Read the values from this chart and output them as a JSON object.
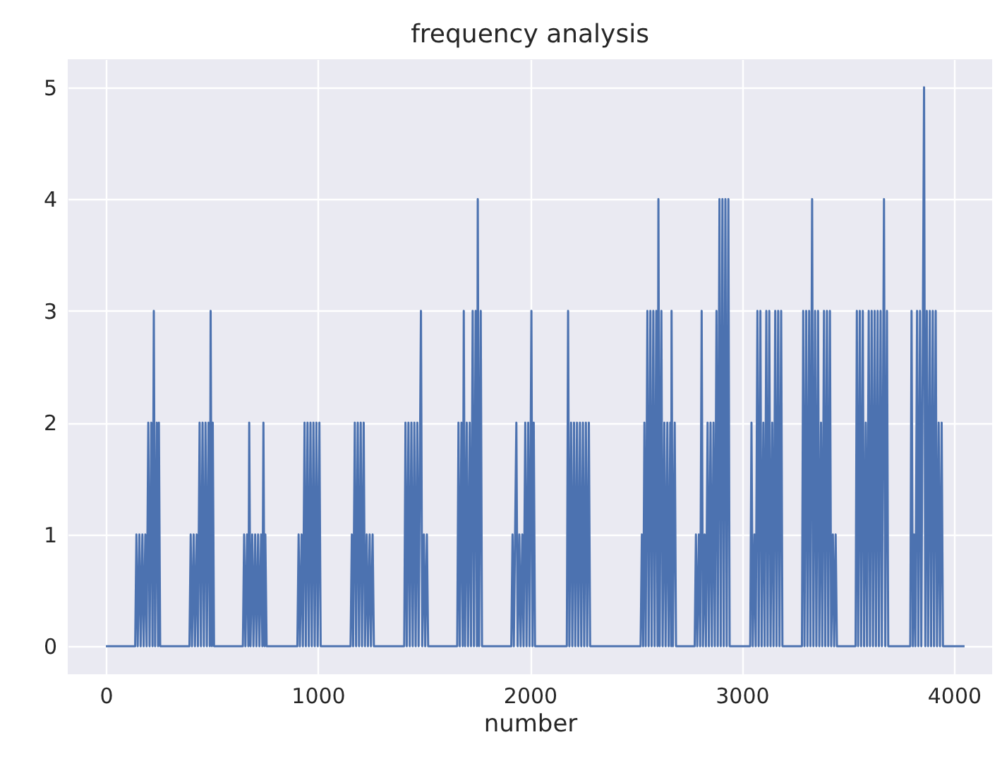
{
  "chart_data": {
    "type": "line",
    "title": "frequency analysis",
    "xlabel": "number",
    "x": [
      0,
      138,
      144,
      150,
      158,
      164,
      172,
      178,
      186,
      192,
      200,
      206,
      214,
      220,
      226,
      232,
      240,
      246,
      250,
      256,
      394,
      400,
      406,
      414,
      420,
      428,
      434,
      442,
      448,
      456,
      462,
      470,
      476,
      484,
      490,
      494,
      500,
      504,
      510,
      646,
      652,
      658,
      666,
      672,
      676,
      682,
      690,
      696,
      704,
      710,
      718,
      724,
      732,
      738,
      743,
      748,
      752,
      758,
      903,
      909,
      915,
      923,
      929,
      937,
      943,
      951,
      957,
      965,
      971,
      979,
      985,
      993,
      999,
      1007,
      1013,
      1154,
      1160,
      1166,
      1174,
      1180,
      1188,
      1194,
      1202,
      1208,
      1216,
      1222,
      1230,
      1236,
      1244,
      1250,
      1258,
      1264,
      1407,
      1413,
      1419,
      1427,
      1433,
      1441,
      1447,
      1455,
      1461,
      1469,
      1475,
      1486,
      1492,
      1500,
      1506,
      1514,
      1520,
      1657,
      1663,
      1669,
      1677,
      1683,
      1688,
      1694,
      1702,
      1708,
      1716,
      1722,
      1730,
      1736,
      1744,
      1750,
      1754,
      1760,
      1768,
      1774,
      1912,
      1918,
      1924,
      1936,
      1942,
      1950,
      1956,
      1964,
      1970,
      1978,
      1984,
      1992,
      1998,
      2007,
      2012,
      2018,
      2024,
      2174,
      2180,
      2186,
      2194,
      2200,
      2208,
      2214,
      2222,
      2228,
      2236,
      2242,
      2250,
      2256,
      2264,
      2270,
      2278,
      2284,
      2522,
      2528,
      2534,
      2540,
      2546,
      2554,
      2560,
      2568,
      2574,
      2582,
      2588,
      2596,
      2602,
      2606,
      2612,
      2620,
      2626,
      2634,
      2640,
      2648,
      2654,
      2662,
      2666,
      2668,
      2674,
      2683,
      2689,
      2777,
      2783,
      2789,
      2797,
      2803,
      2810,
      2816,
      2824,
      2830,
      2838,
      2844,
      2852,
      2858,
      2866,
      2872,
      2880,
      2886,
      2894,
      2900,
      2908,
      2914,
      2922,
      2928,
      2936,
      2942,
      3039,
      3045,
      3051,
      3059,
      3065,
      3073,
      3079,
      3087,
      3093,
      3101,
      3107,
      3115,
      3121,
      3129,
      3135,
      3143,
      3149,
      3157,
      3163,
      3171,
      3177,
      3185,
      3191,
      3283,
      3289,
      3295,
      3303,
      3309,
      3317,
      3323,
      3331,
      3337,
      3345,
      3351,
      3359,
      3365,
      3373,
      3379,
      3387,
      3393,
      3401,
      3407,
      3415,
      3421,
      3429,
      3435,
      3442,
      3448,
      3536,
      3542,
      3548,
      3556,
      3562,
      3570,
      3576,
      3584,
      3590,
      3598,
      3604,
      3612,
      3618,
      3626,
      3632,
      3640,
      3646,
      3654,
      3660,
      3670,
      3676,
      3684,
      3690,
      3794,
      3800,
      3806,
      3812,
      3818,
      3826,
      3832,
      3840,
      3846,
      3859,
      3865,
      3872,
      3878,
      3886,
      3892,
      3900,
      3906,
      3914,
      3920,
      3928,
      3934,
      3942,
      3948,
      4050
    ],
    "series": [
      {
        "color": "#4c72b0",
        "values": [
          0,
          0,
          1,
          0,
          1,
          0,
          1,
          0,
          1,
          0,
          2,
          0,
          2,
          0,
          3,
          0,
          2,
          0,
          2,
          0,
          0,
          1,
          0,
          1,
          0,
          1,
          0,
          2,
          0,
          2,
          0,
          2,
          0,
          2,
          0,
          3,
          0,
          2,
          0,
          0,
          1,
          0,
          1,
          0,
          2,
          0,
          1,
          0,
          1,
          0,
          1,
          0,
          1,
          0,
          2,
          0,
          1,
          0,
          0,
          1,
          0,
          1,
          0,
          2,
          0,
          2,
          0,
          2,
          0,
          2,
          0,
          2,
          0,
          2,
          0,
          0,
          1,
          0,
          2,
          0,
          2,
          0,
          2,
          0,
          2,
          0,
          1,
          0,
          1,
          0,
          1,
          0,
          0,
          2,
          0,
          2,
          0,
          2,
          0,
          2,
          0,
          2,
          0,
          3,
          0,
          1,
          0,
          1,
          0,
          0,
          2,
          0,
          2,
          0,
          3,
          0,
          2,
          0,
          2,
          0,
          3,
          0,
          3,
          0,
          4,
          0,
          3,
          0,
          0,
          1,
          0,
          2,
          0,
          1,
          0,
          1,
          0,
          2,
          0,
          2,
          0,
          3,
          0,
          2,
          0,
          0,
          3,
          0,
          2,
          0,
          2,
          0,
          2,
          0,
          2,
          0,
          2,
          0,
          2,
          0,
          2,
          0,
          0,
          1,
          0,
          2,
          0,
          3,
          0,
          3,
          0,
          3,
          0,
          3,
          0,
          4,
          0,
          3,
          0,
          2,
          0,
          2,
          0,
          2,
          0,
          3,
          0,
          2,
          0,
          0,
          1,
          0,
          1,
          0,
          3,
          0,
          1,
          0,
          2,
          0,
          2,
          0,
          2,
          0,
          3,
          0,
          4,
          0,
          4,
          0,
          4,
          0,
          4,
          0,
          0,
          2,
          0,
          1,
          0,
          3,
          0,
          3,
          0,
          2,
          0,
          3,
          0,
          3,
          0,
          2,
          0,
          3,
          0,
          3,
          0,
          3,
          0,
          0,
          3,
          0,
          3,
          0,
          3,
          0,
          4,
          0,
          3,
          0,
          3,
          0,
          2,
          0,
          3,
          0,
          3,
          0,
          3,
          0,
          1,
          0,
          1,
          0,
          0,
          3,
          0,
          3,
          0,
          3,
          0,
          2,
          0,
          3,
          0,
          3,
          0,
          3,
          0,
          3,
          0,
          3,
          0,
          4,
          0,
          3,
          0,
          0,
          3,
          0,
          1,
          0,
          3,
          0,
          3,
          0,
          5,
          0,
          3,
          0,
          3,
          0,
          3,
          0,
          3,
          0,
          2,
          0,
          2,
          0,
          0
        ]
      }
    ],
    "xlim": [
      -180,
      4180
    ],
    "ylim": [
      -0.25,
      5.25
    ],
    "xticks": [
      0,
      1000,
      2000,
      3000,
      4000
    ],
    "yticks": [
      0,
      1,
      2,
      3,
      4,
      5
    ],
    "grid": true,
    "line_style": "solid"
  }
}
